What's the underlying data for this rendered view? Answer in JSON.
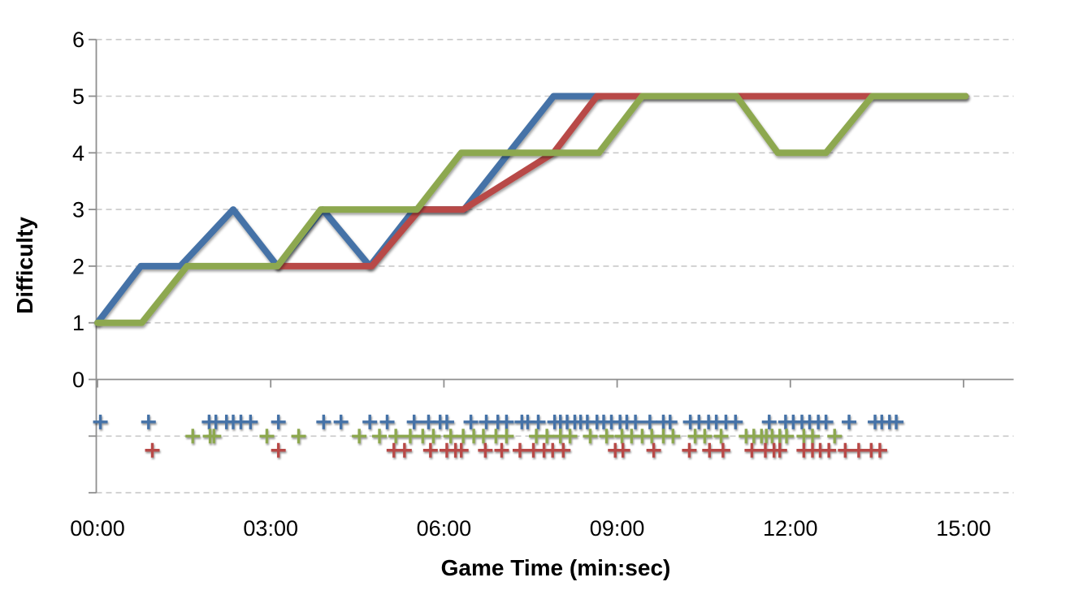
{
  "chart_data": {
    "type": "line",
    "title": "",
    "xlabel": "Game Time (min:sec)",
    "ylabel": "Difficulty",
    "x_unit": "seconds",
    "x_domain": [
      0,
      952
    ],
    "x_ticks": [
      {
        "t": 0,
        "label": "00:00"
      },
      {
        "t": 180,
        "label": "03:00"
      },
      {
        "t": 360,
        "label": "06:00"
      },
      {
        "t": 540,
        "label": "09:00"
      },
      {
        "t": 720,
        "label": "12:00"
      },
      {
        "t": 900,
        "label": "15:00"
      }
    ],
    "y_domain": [
      -2,
      6
    ],
    "y_tick_labels": [
      0,
      1,
      2,
      3,
      4,
      5,
      6
    ],
    "gridline_levels": [
      6,
      5,
      4,
      3,
      2,
      1,
      -1,
      -2
    ],
    "axis_tick_levels": [
      6,
      5,
      4,
      3,
      2,
      1,
      0,
      -1,
      -2
    ],
    "grid_on": true,
    "legend": "none",
    "colors": {
      "blue": "#4572A7",
      "red": "#B84A47",
      "green": "#8DA850",
      "grid": "#c9c9c9",
      "axis": "#8f8f8f"
    },
    "series": [
      {
        "name": "blue-difficulty-line",
        "color_key": "blue",
        "points": [
          [
            0,
            1
          ],
          [
            45,
            2
          ],
          [
            86,
            2
          ],
          [
            141,
            3
          ],
          [
            187,
            2
          ],
          [
            234,
            3
          ],
          [
            283,
            2
          ],
          [
            329,
            3
          ],
          [
            381,
            3
          ],
          [
            474,
            5
          ],
          [
            521,
            5
          ]
        ]
      },
      {
        "name": "red-difficulty-line",
        "color_key": "red",
        "points": [
          [
            188,
            2
          ],
          [
            285,
            2
          ],
          [
            335,
            3
          ],
          [
            380,
            3
          ],
          [
            474,
            4
          ],
          [
            519,
            5
          ],
          [
            902,
            5
          ]
        ]
      },
      {
        "name": "green-difficulty-line",
        "color_key": "green",
        "points": [
          [
            0,
            1
          ],
          [
            46,
            1
          ],
          [
            93,
            2
          ],
          [
            187,
            2
          ],
          [
            232,
            3
          ],
          [
            332,
            3
          ],
          [
            378,
            4
          ],
          [
            521,
            4
          ],
          [
            566,
            5
          ],
          [
            664,
            5
          ],
          [
            707,
            4
          ],
          [
            757,
            4
          ],
          [
            805,
            5
          ],
          [
            902,
            5
          ]
        ]
      }
    ],
    "event_markers": [
      {
        "name": "blue-events",
        "color_key": "blue",
        "marker": "plus",
        "y": -0.75,
        "times": [
          3,
          53,
          116,
          123,
          134,
          141,
          149,
          159,
          188,
          235,
          253,
          283,
          301,
          329,
          344,
          356,
          363,
          388,
          404,
          416,
          425,
          441,
          447,
          458,
          475,
          481,
          488,
          496,
          502,
          509,
          519,
          526,
          534,
          543,
          550,
          559,
          574,
          588,
          595,
          616,
          625,
          635,
          643,
          653,
          663,
          698,
          715,
          723,
          732,
          740,
          749,
          757,
          781,
          808,
          815,
          823,
          830
        ]
      },
      {
        "name": "green-events",
        "color_key": "green",
        "marker": "plus",
        "y": -1.0,
        "times": [
          99,
          117,
          121,
          176,
          209,
          272,
          293,
          310,
          325,
          338,
          349,
          367,
          380,
          391,
          401,
          414,
          425,
          456,
          467,
          481,
          491,
          512,
          529,
          545,
          555,
          566,
          576,
          588,
          598,
          621,
          631,
          648,
          674,
          682,
          690,
          695,
          701,
          709,
          716,
          734,
          743,
          766
        ]
      },
      {
        "name": "red-events",
        "color_key": "red",
        "marker": "plus",
        "y": -1.25,
        "times": [
          57,
          188,
          308,
          319,
          346,
          363,
          372,
          378,
          403,
          420,
          439,
          453,
          464,
          473,
          484,
          538,
          546,
          578,
          615,
          636,
          650,
          680,
          694,
          703,
          709,
          734,
          743,
          751,
          760,
          777,
          791,
          804,
          813
        ]
      }
    ]
  }
}
